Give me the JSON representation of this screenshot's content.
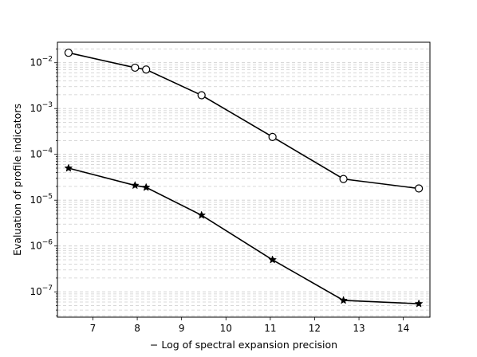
{
  "chart_data": {
    "type": "line",
    "title": "",
    "xlabel": "− Log of spectral expansion precision",
    "ylabel": "Evaluation of profile indicators",
    "xlim": [
      6.2,
      14.6
    ],
    "ylim": [
      2.8e-08,
      0.028
    ],
    "yscale": "log",
    "grid": "y-major-and-minor-dashed",
    "legend": "none",
    "xticks": [
      "7",
      "8",
      "9",
      "10",
      "11",
      "12",
      "13",
      "14"
    ],
    "yticks": [
      {
        "base": "10",
        "exp": "−2"
      },
      {
        "base": "10",
        "exp": "−3"
      },
      {
        "base": "10",
        "exp": "−4"
      },
      {
        "base": "10",
        "exp": "−5"
      },
      {
        "base": "10",
        "exp": "−6"
      },
      {
        "base": "10",
        "exp": "−7"
      }
    ],
    "series": [
      {
        "marker": "circle",
        "color": "#000000",
        "x": [
          6.45,
          7.95,
          8.2,
          9.45,
          11.05,
          12.65,
          14.35
        ],
        "y": [
          0.0165,
          0.0078,
          0.0071,
          0.00195,
          0.00024,
          2.9e-05,
          1.8e-05
        ]
      },
      {
        "marker": "star",
        "color": "#000000",
        "x": [
          6.45,
          7.95,
          8.2,
          9.45,
          11.05,
          12.65,
          14.35
        ],
        "y": [
          5e-05,
          2.1e-05,
          1.9e-05,
          4.7e-06,
          5e-07,
          6.5e-08,
          5.5e-08
        ]
      }
    ]
  }
}
